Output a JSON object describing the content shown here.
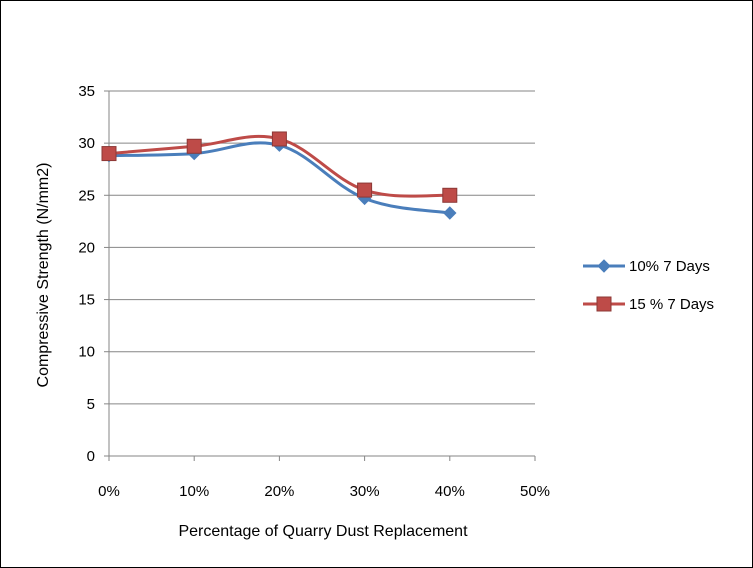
{
  "chart_data": {
    "type": "line",
    "x": [
      "0%",
      "10%",
      "20%",
      "30%",
      "40%"
    ],
    "x_values": [
      0,
      10,
      20,
      30,
      40
    ],
    "x_ticks": [
      "0%",
      "10%",
      "20%",
      "30%",
      "40%",
      "50%"
    ],
    "xlim": [
      0,
      50
    ],
    "ylim": [
      0,
      35
    ],
    "y_ticks": [
      0,
      5,
      10,
      15,
      20,
      25,
      30,
      35
    ],
    "xlabel": "Percentage of Quarry Dust Replacement",
    "ylabel": "Compressive Strength (N/mm2)",
    "title": "",
    "grid": "horizontal",
    "legend_position": "right",
    "series": [
      {
        "name": "10% 7 Days",
        "values": [
          28.8,
          29.0,
          29.8,
          24.7,
          23.3
        ],
        "color": "#4A7EBB",
        "marker": "diamond"
      },
      {
        "name": "15 % 7 Days",
        "values": [
          29.0,
          29.7,
          30.4,
          25.5,
          25.0
        ],
        "color": "#BE4B48",
        "marker": "square"
      }
    ]
  }
}
